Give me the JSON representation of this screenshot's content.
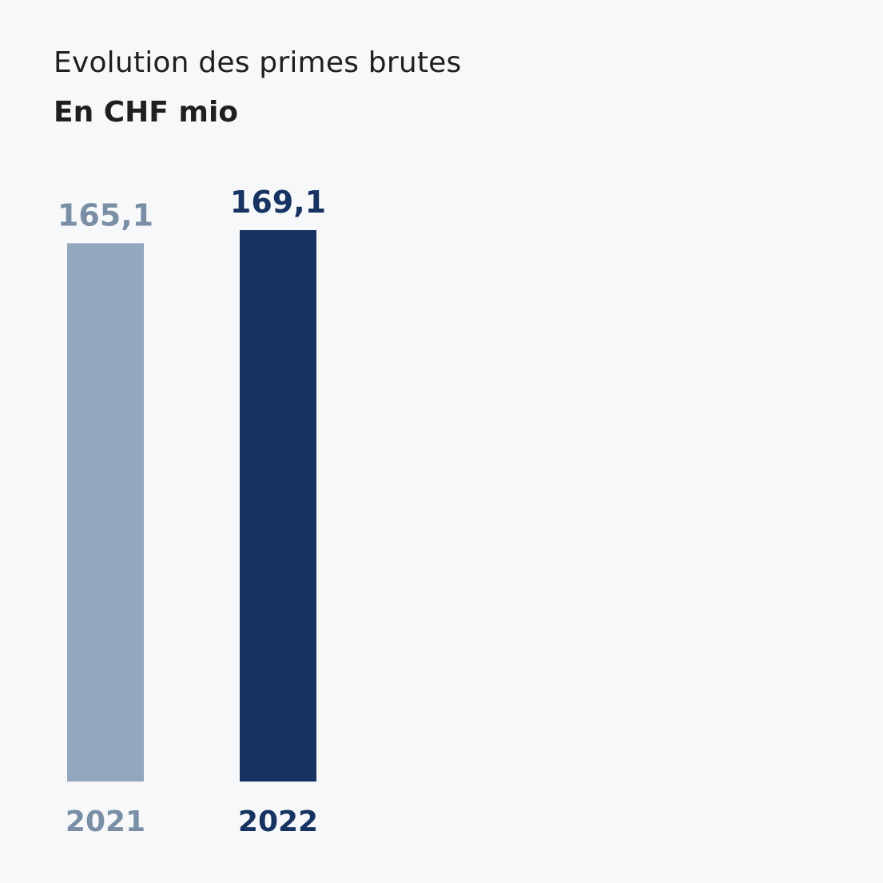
{
  "header": {
    "title": "Evolution des primes brutes",
    "subtitle": "En CHF mio"
  },
  "chart_data": {
    "type": "bar",
    "categories": [
      "2021",
      "2022"
    ],
    "values": [
      165.1,
      169.1
    ],
    "value_labels": [
      "165,1",
      "169,1"
    ],
    "colors": [
      "#93a8be",
      "#163361"
    ],
    "label_colors": [
      "#7a8fa6",
      "#163361"
    ],
    "title": "Evolution des primes brutes",
    "ylabel": "En CHF mio",
    "ylim": [
      0,
      169.1
    ],
    "grid": false,
    "legend": "none"
  }
}
